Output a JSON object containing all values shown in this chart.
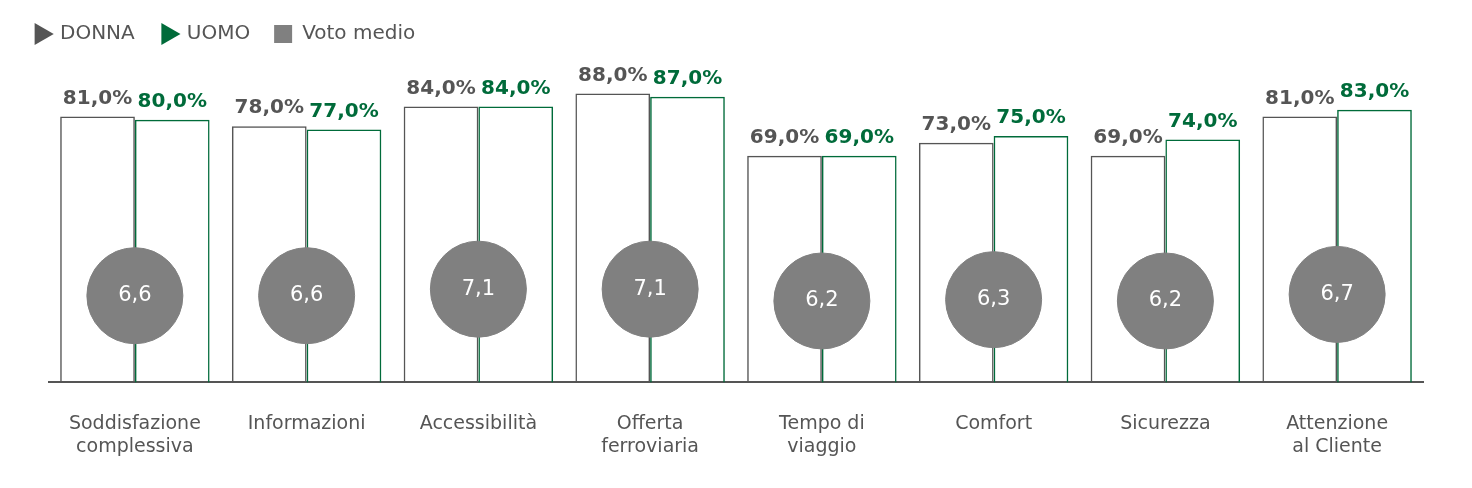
{
  "chart_data": {
    "type": "bar",
    "categories": [
      "Soddisfazione complessiva",
      "Informazioni",
      "Accessibilità",
      "Offerta ferroviaria",
      "Tempo di viaggio",
      "Comfort",
      "Sicurezza",
      "Attenzione al Cliente"
    ],
    "series": [
      {
        "name": "DONNA",
        "color": "#555555",
        "values": [
          81,
          78,
          84,
          88,
          69,
          73,
          69,
          81
        ],
        "value_labels": [
          "81,0%",
          "78,0%",
          "84,0%",
          "88,0%",
          "69,0%",
          "73,0%",
          "69,0%",
          "81,0%"
        ]
      },
      {
        "name": "UOMO",
        "color": "#006b3a",
        "values": [
          80,
          77,
          84,
          87,
          69,
          75,
          74,
          83
        ],
        "value_labels": [
          "80,0%",
          "77,0%",
          "84,0%",
          "87,0%",
          "69,0%",
          "75,0%",
          "74,0%",
          "83,0%"
        ]
      },
      {
        "name": "Voto medio",
        "type": "scatter",
        "axis": "y2",
        "marker": "circle",
        "color": "#808080",
        "values": [
          6.6,
          6.6,
          7.1,
          7.1,
          6.2,
          6.3,
          6.2,
          6.7
        ],
        "value_labels": [
          "6,6",
          "6,6",
          "7,1",
          "7,1",
          "6,2",
          "6,3",
          "6,2",
          "6,7"
        ]
      }
    ],
    "tick_labels": "x",
    "grid": false,
    "legend": "top left"
  }
}
